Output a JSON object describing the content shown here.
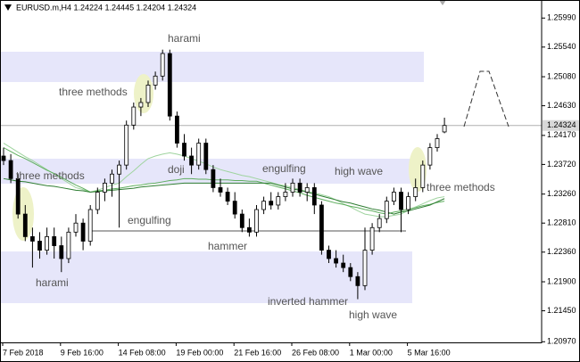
{
  "chart_data": {
    "type": "candlestick",
    "title": "EURUSD.m,H4  1.24224 1.24445 1.24204 1.24324",
    "categories": [
      "7 Feb 2018",
      null,
      null,
      null,
      null,
      null,
      null,
      null,
      "9 Feb 16:00",
      null,
      null,
      null,
      null,
      null,
      null,
      null,
      "14 Feb 08:00",
      null,
      null,
      null,
      null,
      null,
      null,
      null,
      "19 Feb 00:00",
      null,
      null,
      null,
      null,
      null,
      null,
      null,
      "21 Feb 16:00",
      null,
      null,
      null,
      null,
      null,
      null,
      null,
      "26 Feb 08:00",
      null,
      null,
      null,
      null,
      null,
      null,
      null,
      "1 Mar 00:00",
      null,
      null,
      null,
      null,
      null,
      null,
      null,
      "5 Mar 16:00",
      null,
      null,
      null,
      null,
      null
    ],
    "open": [
      1.2385,
      1.2378,
      1.235,
      1.2295,
      1.226,
      1.2253,
      1.2239,
      1.226,
      1.2246,
      1.2226,
      1.2267,
      1.2281,
      1.2253,
      1.2302,
      1.2329,
      1.2343,
      1.2357,
      1.2371,
      1.2433,
      1.2461,
      1.2468,
      1.2495,
      1.2509,
      1.2544,
      1.2447,
      1.2405,
      1.2385,
      1.2371,
      1.2405,
      1.2364,
      1.2336,
      1.2329,
      1.2315,
      1.2295,
      1.2274,
      1.2267,
      1.2302,
      1.2315,
      1.2309,
      1.2322,
      1.2329,
      1.2343,
      1.2329,
      1.2336,
      1.2309,
      1.2239,
      1.2226,
      1.2219,
      1.2212,
      1.2198,
      1.2184,
      1.2239,
      1.2274,
      1.2288,
      1.2315,
      1.2329,
      1.2302,
      1.2322,
      1.2336,
      1.2371,
      1.2398,
      1.24224
    ],
    "high": [
      1.2398,
      1.2388,
      1.2357,
      1.2309,
      1.2274,
      1.2267,
      1.2274,
      1.2274,
      1.226,
      1.2274,
      1.2295,
      1.2288,
      1.2309,
      1.2336,
      1.235,
      1.2364,
      1.2378,
      1.244,
      1.2468,
      1.2475,
      1.2502,
      1.2516,
      1.255,
      1.255,
      1.2454,
      1.2419,
      1.2398,
      1.2412,
      1.2412,
      1.2371,
      1.235,
      1.2336,
      1.2329,
      1.2302,
      1.2288,
      1.2309,
      1.2322,
      1.2329,
      1.2329,
      1.2343,
      1.235,
      1.235,
      1.2343,
      1.2343,
      1.2315,
      1.2246,
      1.2239,
      1.2232,
      1.2219,
      1.2205,
      1.2274,
      1.2281,
      1.2295,
      1.2322,
      1.2336,
      1.2336,
      1.2329,
      1.235,
      1.2378,
      1.2405,
      1.2419,
      1.24445
    ],
    "low": [
      1.2371,
      1.2343,
      1.2288,
      1.2253,
      1.2212,
      1.2226,
      1.2232,
      1.2226,
      1.2205,
      1.2219,
      1.226,
      1.2239,
      1.2246,
      1.2295,
      1.2315,
      1.2322,
      1.2274,
      1.2364,
      1.2426,
      1.2447,
      1.2461,
      1.2488,
      1.2502,
      1.244,
      1.2398,
      1.2378,
      1.2357,
      1.2364,
      1.2357,
      1.2329,
      1.2322,
      1.2309,
      1.2288,
      1.2267,
      1.226,
      1.226,
      1.2295,
      1.2302,
      1.2302,
      1.2315,
      1.2322,
      1.2322,
      1.2315,
      1.2295,
      1.2232,
      1.2219,
      1.2212,
      1.2205,
      1.2191,
      1.2163,
      1.2177,
      1.2232,
      1.2267,
      1.2281,
      1.2309,
      1.2267,
      1.2295,
      1.2315,
      1.2329,
      1.2364,
      1.2392,
      1.24204
    ],
    "close": [
      1.2378,
      1.235,
      1.2295,
      1.226,
      1.2253,
      1.2239,
      1.226,
      1.2246,
      1.2226,
      1.2267,
      1.2281,
      1.2253,
      1.2302,
      1.2329,
      1.2343,
      1.2357,
      1.2371,
      1.2433,
      1.2461,
      1.2468,
      1.2495,
      1.2509,
      1.2544,
      1.2447,
      1.2405,
      1.2385,
      1.2371,
      1.2405,
      1.2364,
      1.2336,
      1.2329,
      1.2315,
      1.2295,
      1.2274,
      1.2267,
      1.2302,
      1.2315,
      1.2309,
      1.2322,
      1.2329,
      1.2343,
      1.2329,
      1.2336,
      1.2309,
      1.2239,
      1.2226,
      1.2219,
      1.2212,
      1.2198,
      1.2184,
      1.2239,
      1.2274,
      1.2288,
      1.2315,
      1.2329,
      1.2302,
      1.2322,
      1.2336,
      1.2371,
      1.2398,
      1.2412,
      1.24324
    ],
    "up_color": "#ffffff",
    "down_color": "#000000",
    "overlays": [
      {
        "color": "#9fd49f",
        "values": [
          1.2405,
          1.2398,
          1.2391,
          1.2384,
          1.2378,
          1.2371,
          1.2364,
          1.2357,
          1.235,
          1.2343,
          1.2336,
          1.2333,
          1.2329,
          1.2332,
          1.2336,
          1.234,
          1.2343,
          1.2353,
          1.2362,
          1.2372,
          1.2381,
          1.2385,
          1.2388,
          1.239,
          1.2388,
          1.2385,
          1.2381,
          1.2377,
          1.2373,
          1.2368,
          1.2364,
          1.2361,
          1.2358,
          1.2355,
          1.2353,
          1.235,
          1.2347,
          1.2344,
          1.2341,
          1.2339,
          1.2336,
          1.2333,
          1.233,
          1.2328,
          1.2325,
          1.2322,
          1.2317,
          1.2311,
          1.2306,
          1.23,
          1.2295,
          1.2293,
          1.2291,
          1.2291,
          1.2293,
          1.2295,
          1.2301,
          1.2306,
          1.2311,
          1.2316,
          1.232,
          1.2322
        ]
      },
      {
        "color": "#5fae5f",
        "values": [
          1.2398,
          1.2392,
          1.2386,
          1.2381,
          1.2375,
          1.2369,
          1.2363,
          1.2358,
          1.2352,
          1.2346,
          1.234,
          1.2335,
          1.2329,
          1.2331,
          1.2332,
          1.2334,
          1.2335,
          1.2337,
          1.2339,
          1.234,
          1.2342,
          1.2343,
          1.2345,
          1.2347,
          1.2348,
          1.235,
          1.235,
          1.2349,
          1.2349,
          1.2348,
          1.2348,
          1.2348,
          1.2347,
          1.2347,
          1.2346,
          1.2346,
          1.2343,
          1.234,
          1.2337,
          1.2334,
          1.2331,
          1.2328,
          1.2324,
          1.2321,
          1.2318,
          1.2315,
          1.2312,
          1.231,
          1.2307,
          1.2305,
          1.2302,
          1.23,
          1.2297,
          1.2295,
          1.2298,
          1.23,
          1.2303,
          1.2305,
          1.2308,
          1.231,
          1.2313,
          1.2315
        ]
      },
      {
        "color": "#2e7d32",
        "values": [
          1.235,
          1.2348,
          1.2346,
          1.2345,
          1.2343,
          1.2341,
          1.2339,
          1.2338,
          1.2336,
          1.2334,
          1.2332,
          1.2331,
          1.2329,
          1.233,
          1.2331,
          1.2332,
          1.2333,
          1.2334,
          1.2335,
          1.2337,
          1.2338,
          1.2339,
          1.234,
          1.2341,
          1.2342,
          1.2343,
          1.2343,
          1.2343,
          1.2343,
          1.2343,
          1.2343,
          1.2343,
          1.2343,
          1.2343,
          1.2343,
          1.2343,
          1.2343,
          1.2343,
          1.234,
          1.2337,
          1.2334,
          1.2332,
          1.2329,
          1.2326,
          1.2323,
          1.232,
          1.2317,
          1.2314,
          1.2312,
          1.2309,
          1.2306,
          1.2303,
          1.2301,
          1.2298,
          1.2295,
          1.2298,
          1.23,
          1.2303,
          1.2306,
          1.2309,
          1.2314,
          1.2319
        ]
      }
    ],
    "ylim": [
      1.2096,
      1.2627
    ],
    "yticks": [
      {
        "value": 1.2599,
        "label": "1.25990"
      },
      {
        "value": 1.2554,
        "label": "1.25540"
      },
      {
        "value": 1.2508,
        "label": "1.25080"
      },
      {
        "value": 1.2463,
        "label": "1.24630"
      },
      {
        "value": 1.2417,
        "label": "1.24170"
      },
      {
        "value": 1.2372,
        "label": "1.23720"
      },
      {
        "value": 1.2326,
        "label": "1.23260"
      },
      {
        "value": 1.2281,
        "label": "1.22810"
      },
      {
        "value": 1.2236,
        "label": "1.22360"
      },
      {
        "value": 1.219,
        "label": "1.21900"
      },
      {
        "value": 1.2145,
        "label": "1.21450"
      },
      {
        "value": 1.2097,
        "label": "1.20970"
      }
    ],
    "last_price": {
      "value": 1.24324,
      "label": "1.24324"
    },
    "annotations": [
      "harami",
      "three methods",
      "three methods",
      "doji",
      "engulfing",
      "high wave",
      "three methods",
      "engulfing",
      "hammer",
      "harami",
      "inverted hammer",
      "high wave"
    ]
  }
}
